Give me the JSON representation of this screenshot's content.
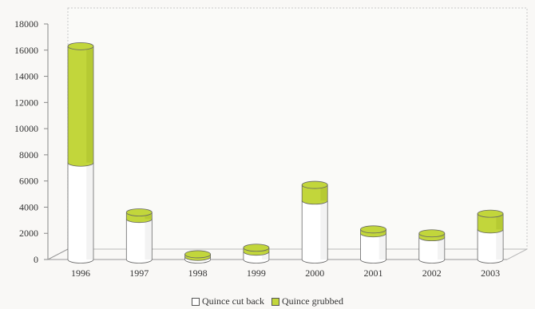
{
  "chart_data": {
    "type": "bar",
    "stacked": true,
    "three_d": true,
    "categories": [
      "1996",
      "1997",
      "1998",
      "1999",
      "2000",
      "2001",
      "2002",
      "2003"
    ],
    "series": [
      {
        "name": "Quince cut back",
        "color": "#ffffff",
        "values": [
          7400,
          3100,
          200,
          600,
          4500,
          2000,
          1700,
          2300
        ]
      },
      {
        "name": "Quince grubbed",
        "color": "#c2d63b",
        "values": [
          8900,
          500,
          200,
          300,
          1200,
          300,
          300,
          1200
        ]
      }
    ],
    "yticks": [
      0,
      2000,
      4000,
      6000,
      8000,
      10000,
      12000,
      14000,
      16000,
      18000
    ],
    "ylim": [
      0,
      18000
    ],
    "grid": false,
    "legend_position": "bottom-center"
  }
}
